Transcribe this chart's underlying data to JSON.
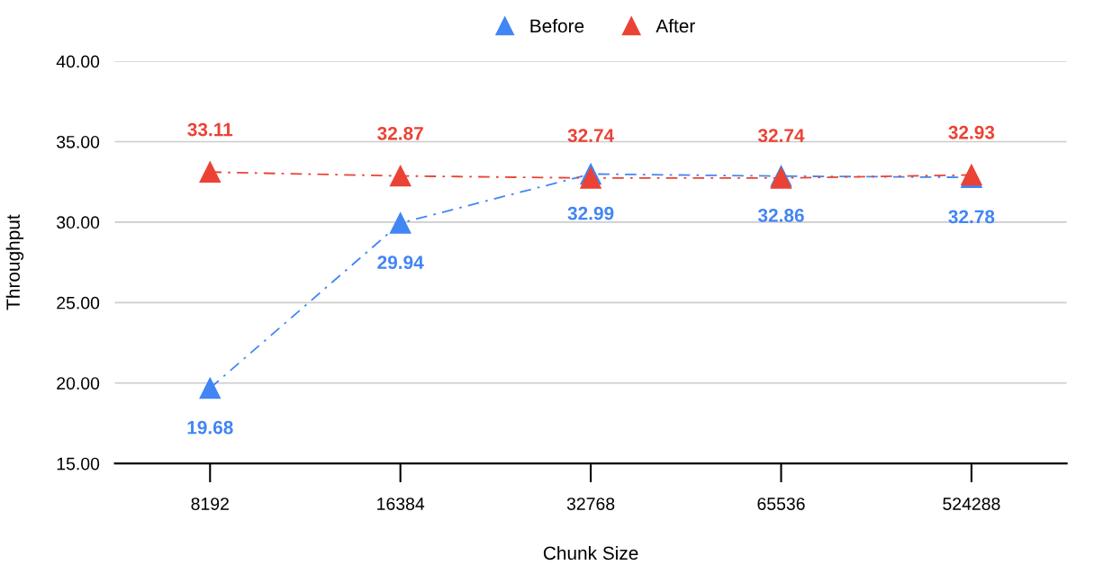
{
  "chart_data": {
    "type": "line",
    "xlabel": "Chunk Size",
    "ylabel": "Throughput",
    "categories": [
      "8192",
      "16384",
      "32768",
      "65536",
      "524288"
    ],
    "series": [
      {
        "name": "Before",
        "color": "#4285f4",
        "values": [
          19.68,
          29.94,
          32.99,
          32.86,
          32.78
        ]
      },
      {
        "name": "After",
        "color": "#ea4335",
        "values": [
          33.11,
          32.87,
          32.74,
          32.74,
          32.93
        ]
      }
    ],
    "ylim": [
      15,
      40
    ],
    "yticks": [
      {
        "value": 15,
        "label": "15.00"
      },
      {
        "value": 20,
        "label": "20.00"
      },
      {
        "value": 25,
        "label": "25.00"
      },
      {
        "value": 30,
        "label": "30.00"
      },
      {
        "value": 35,
        "label": "35.00"
      },
      {
        "value": 40,
        "label": "40.00"
      }
    ],
    "grid": "y",
    "legend": "top",
    "marker": "triangle",
    "line_style": "dashed",
    "data_labels": true
  }
}
